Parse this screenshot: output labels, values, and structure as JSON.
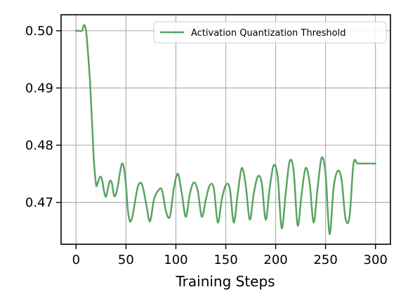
{
  "chart_data": {
    "type": "line",
    "title": "",
    "xlabel": "Training Steps",
    "ylabel": "",
    "xlim": [
      -15,
      315
    ],
    "ylim": [
      0.4627,
      0.5028
    ],
    "xticks": [
      0,
      50,
      100,
      150,
      200,
      250,
      300
    ],
    "xtick_labels": [
      "0",
      "50",
      "100",
      "150",
      "200",
      "250",
      "300"
    ],
    "yticks": [
      0.47,
      0.48,
      0.49,
      0.5
    ],
    "ytick_labels": [
      "0.47",
      "0.48",
      "0.49",
      "0.50"
    ],
    "grid": true,
    "legend": {
      "placement": "top-right"
    },
    "series": [
      {
        "name": "Activation Quantization Threshold",
        "color": "#59a463",
        "x": [
          0,
          3,
          6,
          8,
          10,
          12,
          14,
          16,
          18,
          20,
          21,
          22,
          24,
          26,
          28,
          30,
          32,
          34,
          36,
          38,
          40,
          42,
          44,
          46,
          48,
          50,
          52,
          54,
          56,
          58,
          62,
          66,
          70,
          74,
          78,
          82,
          86,
          90,
          94,
          98,
          102,
          106,
          110,
          114,
          118,
          122,
          126,
          130,
          134,
          138,
          142,
          146,
          150,
          154,
          158,
          162,
          166,
          170,
          174,
          178,
          182,
          186,
          190,
          194,
          198,
          202,
          206,
          210,
          214,
          218,
          222,
          226,
          230,
          234,
          238,
          242,
          246,
          250,
          254,
          258,
          262,
          266,
          270,
          274,
          278,
          282,
          286,
          290,
          294,
          296,
          298,
          300
        ],
        "y": [
          0.5,
          0.5,
          0.5,
          0.501,
          0.5,
          0.496,
          0.491,
          0.484,
          0.477,
          0.4732,
          0.473,
          0.4735,
          0.4745,
          0.474,
          0.472,
          0.471,
          0.4725,
          0.4738,
          0.4733,
          0.4712,
          0.4715,
          0.473,
          0.4752,
          0.4768,
          0.476,
          0.473,
          0.4685,
          0.4667,
          0.4672,
          0.469,
          0.4728,
          0.4732,
          0.47,
          0.4667,
          0.4705,
          0.472,
          0.4722,
          0.4685,
          0.4675,
          0.4725,
          0.475,
          0.4715,
          0.4675,
          0.4715,
          0.4735,
          0.472,
          0.4675,
          0.4705,
          0.473,
          0.4725,
          0.4665,
          0.4705,
          0.473,
          0.4725,
          0.4665,
          0.4715,
          0.476,
          0.473,
          0.467,
          0.4715,
          0.4745,
          0.4735,
          0.467,
          0.4725,
          0.4765,
          0.4745,
          0.4655,
          0.4715,
          0.4772,
          0.4755,
          0.466,
          0.4715,
          0.476,
          0.4735,
          0.4665,
          0.4725,
          0.4778,
          0.475,
          0.4645,
          0.4725,
          0.4755,
          0.474,
          0.4672,
          0.4675,
          0.4768,
          0.4768,
          0.4768,
          0.4768,
          0.4768,
          0.4768,
          0.4768,
          0.4768
        ]
      }
    ]
  }
}
